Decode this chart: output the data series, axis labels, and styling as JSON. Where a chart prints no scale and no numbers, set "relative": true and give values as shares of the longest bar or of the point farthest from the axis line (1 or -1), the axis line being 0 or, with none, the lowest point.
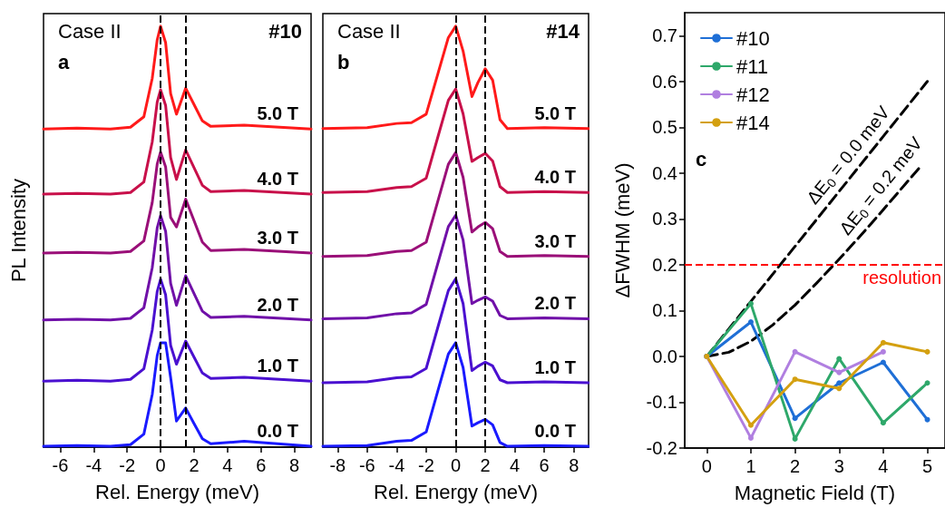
{
  "chart_data": [
    {
      "type": "line",
      "relative": true,
      "xlabel": "Rel. Energy (meV)",
      "ylabel": "PL Intensity",
      "annotations": [
        "Case II",
        "a",
        "#10"
      ],
      "x": [
        -7,
        -5,
        -3,
        -1.8,
        -1,
        -0.5,
        -0.2,
        0,
        0.3,
        0.6,
        0.95,
        1.5,
        2,
        2.5,
        3,
        5,
        9
      ],
      "xlim": [
        -7,
        9
      ],
      "xticks": [
        -6,
        -4,
        -2,
        0,
        2,
        4,
        6,
        8
      ],
      "tick_labels": "x",
      "grid": false,
      "legend": false,
      "marker": "none",
      "line_style": "solid",
      "ref_lines": [
        {
          "axis": "x",
          "value": 0,
          "color": "#000000",
          "line_style": "dashed"
        },
        {
          "axis": "x",
          "value": 1.5,
          "color": "#000000",
          "line_style": "dashed"
        }
      ],
      "series": [
        {
          "name": "5.0 T",
          "color": "#ff1a1a",
          "values": [
            0.756,
            0.758,
            0.756,
            0.76,
            0.785,
            0.876,
            0.968,
            1.0,
            0.961,
            0.84,
            0.791,
            0.853,
            0.814,
            0.775,
            0.762,
            0.765,
            0.756
          ]
        },
        {
          "name": "4.0 T",
          "color": "#c8104a",
          "values": [
            0.601,
            0.603,
            0.601,
            0.605,
            0.63,
            0.725,
            0.82,
            0.849,
            0.812,
            0.688,
            0.636,
            0.706,
            0.664,
            0.622,
            0.607,
            0.61,
            0.601
          ]
        },
        {
          "name": "3.0 T",
          "color": "#9a0f78",
          "values": [
            0.461,
            0.463,
            0.461,
            0.465,
            0.49,
            0.581,
            0.673,
            0.701,
            0.666,
            0.546,
            0.523,
            0.589,
            0.538,
            0.487,
            0.467,
            0.47,
            0.461
          ]
        },
        {
          "name": "2.0 T",
          "color": "#7010a8",
          "values": [
            0.302,
            0.304,
            0.302,
            0.306,
            0.331,
            0.426,
            0.521,
            0.55,
            0.513,
            0.389,
            0.337,
            0.407,
            0.365,
            0.323,
            0.308,
            0.311,
            0.302
          ]
        },
        {
          "name": "1.0 T",
          "color": "#4a10d0",
          "values": [
            0.157,
            0.159,
            0.157,
            0.161,
            0.186,
            0.278,
            0.37,
            0.399,
            0.362,
            0.242,
            0.197,
            0.252,
            0.214,
            0.176,
            0.163,
            0.166,
            0.157
          ]
        },
        {
          "name": "0.0 T",
          "color": "#1a1aff",
          "values": [
            0.002,
            0.004,
            0.002,
            0.006,
            0.031,
            0.125,
            0.218,
            0.248,
            0.248,
            0.166,
            0.062,
            0.093,
            0.056,
            0.02,
            0.008,
            0.014,
            0.002
          ]
        }
      ]
    },
    {
      "type": "line",
      "relative": true,
      "xlabel": "Rel. Energy (meV)",
      "annotations": [
        "Case II",
        "b",
        "#14"
      ],
      "x": [
        -9,
        -6,
        -4,
        -3,
        -2,
        -1.2,
        -0.5,
        0,
        0.5,
        1.1,
        1.5,
        2,
        2.5,
        3,
        3.5,
        6,
        9
      ],
      "xlim": [
        -9,
        9
      ],
      "xticks": [
        -8,
        -6,
        -4,
        -2,
        0,
        2,
        4,
        6,
        8
      ],
      "tick_labels": "x",
      "grid": false,
      "legend": false,
      "marker": "none",
      "line_style": "solid",
      "ref_lines": [
        {
          "axis": "x",
          "value": 0,
          "color": "#000000",
          "line_style": "dashed"
        },
        {
          "axis": "x",
          "value": 2,
          "color": "#000000",
          "line_style": "dashed"
        }
      ],
      "series": [
        {
          "name": "5.0 T",
          "color": "#ff1a1a",
          "values": [
            0.757,
            0.759,
            0.769,
            0.771,
            0.791,
            0.888,
            0.973,
            1.0,
            0.941,
            0.833,
            0.866,
            0.899,
            0.872,
            0.778,
            0.757,
            0.759,
            0.757
          ]
        },
        {
          "name": "4.0 T",
          "color": "#c8104a",
          "values": [
            0.605,
            0.607,
            0.617,
            0.619,
            0.639,
            0.738,
            0.824,
            0.851,
            0.792,
            0.679,
            0.688,
            0.698,
            0.68,
            0.619,
            0.605,
            0.607,
            0.605
          ]
        },
        {
          "name": "3.0 T",
          "color": "#9a0f78",
          "values": [
            0.453,
            0.455,
            0.465,
            0.467,
            0.487,
            0.586,
            0.672,
            0.7,
            0.641,
            0.511,
            0.523,
            0.534,
            0.519,
            0.465,
            0.453,
            0.455,
            0.453
          ]
        },
        {
          "name": "2.0 T",
          "color": "#7010a8",
          "values": [
            0.305,
            0.307,
            0.317,
            0.319,
            0.339,
            0.438,
            0.524,
            0.551,
            0.492,
            0.341,
            0.349,
            0.357,
            0.347,
            0.313,
            0.305,
            0.307,
            0.305
          ]
        },
        {
          "name": "1.0 T",
          "color": "#4a10d0",
          "values": [
            0.153,
            0.155,
            0.165,
            0.167,
            0.187,
            0.286,
            0.372,
            0.4,
            0.341,
            0.182,
            0.192,
            0.202,
            0.193,
            0.16,
            0.153,
            0.155,
            0.153
          ]
        },
        {
          "name": "0.0 T",
          "color": "#1a1aff",
          "values": [
            0.002,
            0.004,
            0.014,
            0.016,
            0.036,
            0.135,
            0.221,
            0.248,
            0.189,
            0.05,
            0.058,
            0.066,
            0.053,
            0.011,
            0.002,
            0.004,
            0.002
          ]
        }
      ]
    },
    {
      "type": "line",
      "xlabel": "Magnetic Field (T)",
      "ylabel": "ΔFWHM (meV)",
      "annotations": [
        "c",
        "ΔE$_{0}$ = 0.0 meV",
        "ΔE$_{0}$ = 0.2 meV"
      ],
      "x": [
        0,
        1,
        2,
        3,
        4,
        5
      ],
      "xlim": [
        -0.5,
        5.4
      ],
      "xticks": [
        0,
        1,
        2,
        3,
        4,
        5
      ],
      "ylim": [
        -0.2,
        0.75
      ],
      "yticks": [
        -0.2,
        -0.1,
        {
          "value": 0,
          "label": "0.0"
        },
        0.1,
        0.2,
        0.3,
        0.4,
        0.5,
        0.6,
        0.7
      ],
      "grid": false,
      "legend": "top left",
      "marker": "circle",
      "line_style": "solid",
      "ref_lines": [
        {
          "axis": "y",
          "value": 0.2,
          "label": "resolution",
          "color": "#ff0000",
          "line_style": "dashed"
        }
      ],
      "series": [
        {
          "name": "#10",
          "color": "#1f6fd6",
          "values": [
            0,
            0.075,
            -0.135,
            -0.058,
            -0.013,
            -0.138
          ]
        },
        {
          "name": "#11",
          "color": "#2ea86a",
          "values": [
            0,
            0.115,
            -0.18,
            -0.005,
            -0.145,
            -0.058
          ]
        },
        {
          "name": "#12",
          "color": "#b07fe0",
          "x": [
            0,
            1,
            2,
            3,
            4
          ],
          "values": [
            0,
            -0.178,
            0.01,
            -0.035,
            0.01
          ]
        },
        {
          "name": "#14",
          "color": "#d4a010",
          "values": [
            0,
            -0.15,
            -0.05,
            -0.07,
            0.03,
            0.01
          ]
        },
        {
          "color": "#000000",
          "marker": "none",
          "line_style": "dashed",
          "x": [
            0,
            1,
            2,
            3,
            4,
            5
          ],
          "values": [
            0,
            0.12,
            0.24,
            0.36,
            0.48,
            0.6
          ]
        },
        {
          "color": "#000000",
          "marker": "none",
          "line_style": "dashed",
          "x": [
            0,
            0.5,
            1,
            1.5,
            2,
            2.5,
            3,
            3.5,
            4,
            4.5,
            4.85
          ],
          "values": [
            0,
            0.009,
            0.033,
            0.069,
            0.112,
            0.161,
            0.212,
            0.265,
            0.32,
            0.376,
            0.415
          ]
        }
      ]
    }
  ]
}
